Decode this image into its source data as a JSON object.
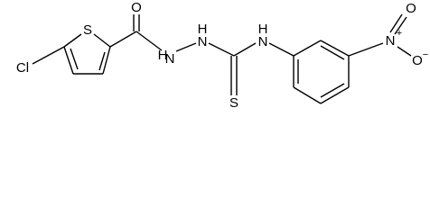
{
  "atoms": [
    {
      "label": "O"
    },
    {
      "label": "S"
    },
    {
      "label": "Cl"
    },
    {
      "label": "H"
    },
    {
      "label": "N"
    },
    {
      "label": "H"
    },
    {
      "label": "N"
    },
    {
      "label": "H"
    },
    {
      "label": "N"
    },
    {
      "label": "S"
    },
    {
      "label": "N"
    },
    {
      "label": "+"
    },
    {
      "label": "O"
    },
    {
      "label": "O"
    },
    {
      "label": "−"
    }
  ]
}
